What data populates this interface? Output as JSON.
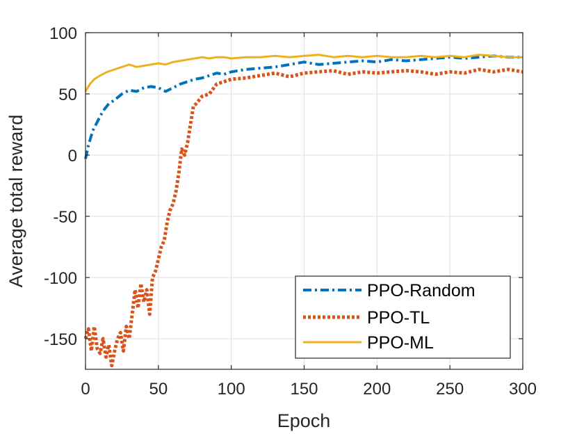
{
  "chart_data": {
    "type": "line",
    "title": "",
    "xlabel": "Epoch",
    "ylabel": "Average total reward",
    "xlim": [
      0,
      300
    ],
    "ylim": [
      -175,
      100
    ],
    "grid": true,
    "legend_position": "bottom-right",
    "x_ticks": [
      0,
      50,
      100,
      150,
      200,
      250,
      300
    ],
    "x_tick_labels": [
      "0",
      "50",
      "100",
      "150",
      "200",
      "250",
      "300"
    ],
    "y_ticks": [
      100,
      50,
      0,
      -50,
      -100,
      -150
    ],
    "y_tick_labels": [
      "100",
      "50",
      "0",
      "-50",
      "-100",
      "-150"
    ],
    "series": [
      {
        "name": "PPO-Random",
        "color": "#0072BD",
        "style": "dashdot",
        "x": [
          0,
          2,
          5,
          8,
          12,
          16,
          20,
          25,
          30,
          35,
          40,
          45,
          50,
          55,
          60,
          65,
          70,
          75,
          80,
          85,
          90,
          95,
          100,
          110,
          120,
          130,
          140,
          150,
          160,
          170,
          180,
          190,
          200,
          210,
          220,
          230,
          240,
          250,
          260,
          270,
          280,
          290,
          300
        ],
        "values": [
          -3,
          8,
          20,
          27,
          36,
          42,
          45,
          50,
          53,
          52,
          55,
          56,
          55,
          52,
          55,
          58,
          60,
          62,
          63,
          65,
          67,
          66,
          68,
          70,
          71,
          72,
          74,
          76,
          74,
          75,
          76,
          77,
          76,
          78,
          77,
          78,
          79,
          80,
          79,
          80,
          81,
          80,
          80
        ]
      },
      {
        "name": "PPO-TL",
        "color": "#D95319",
        "style": "dotted",
        "x": [
          0,
          2,
          4,
          6,
          8,
          10,
          12,
          14,
          16,
          18,
          20,
          22,
          24,
          26,
          28,
          30,
          32,
          34,
          36,
          38,
          40,
          42,
          44,
          46,
          48,
          50,
          52,
          54,
          56,
          58,
          60,
          62,
          64,
          66,
          68,
          70,
          72,
          74,
          76,
          78,
          80,
          85,
          90,
          95,
          100,
          110,
          120,
          130,
          140,
          150,
          160,
          170,
          180,
          190,
          200,
          210,
          220,
          230,
          240,
          250,
          260,
          270,
          280,
          290,
          300
        ],
        "values": [
          -150,
          -142,
          -160,
          -140,
          -158,
          -162,
          -150,
          -165,
          -155,
          -172,
          -160,
          -150,
          -145,
          -160,
          -140,
          -150,
          -130,
          -110,
          -125,
          -105,
          -120,
          -110,
          -130,
          -100,
          -95,
          -85,
          -75,
          -70,
          -55,
          -45,
          -40,
          -30,
          -15,
          5,
          0,
          10,
          25,
          40,
          42,
          45,
          48,
          50,
          58,
          60,
          62,
          63,
          65,
          67,
          64,
          67,
          68,
          69,
          66,
          68,
          67,
          68,
          69,
          68,
          66,
          68,
          67,
          70,
          68,
          70,
          68
        ]
      },
      {
        "name": "PPO-ML",
        "color": "#EDB120",
        "style": "solid",
        "x": [
          0,
          3,
          6,
          10,
          15,
          20,
          25,
          30,
          35,
          40,
          45,
          50,
          55,
          60,
          65,
          70,
          75,
          80,
          85,
          90,
          95,
          100,
          110,
          120,
          130,
          140,
          150,
          160,
          170,
          180,
          190,
          200,
          210,
          220,
          230,
          240,
          250,
          260,
          270,
          280,
          290,
          300
        ],
        "values": [
          52,
          58,
          62,
          65,
          68,
          70,
          72,
          74,
          72,
          73,
          74,
          75,
          74,
          76,
          77,
          78,
          79,
          80,
          79,
          80,
          80,
          79,
          80,
          80,
          81,
          80,
          81,
          82,
          80,
          81,
          80,
          81,
          80,
          80,
          81,
          80,
          81,
          80,
          82,
          81,
          80,
          80
        ]
      }
    ]
  }
}
